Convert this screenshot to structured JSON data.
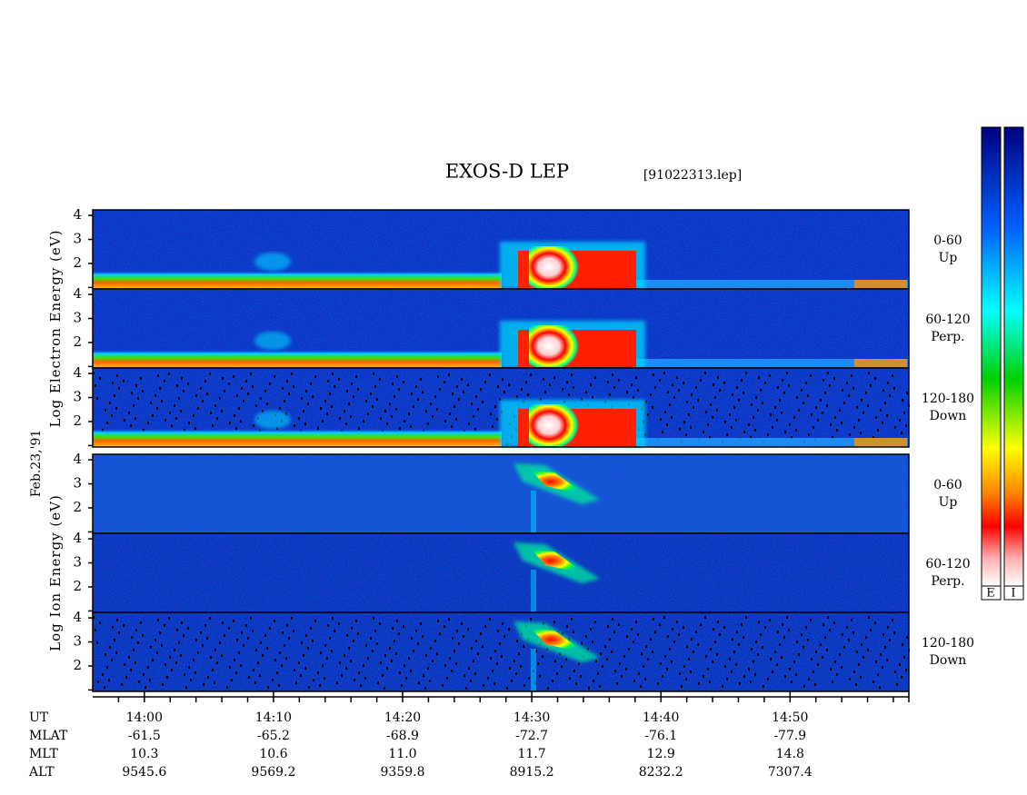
{
  "chart_data": {
    "type": "spectrogram",
    "title": "EXOS-D LEP",
    "subtitle": "[91022313.lep]",
    "date_label": "Feb.23,'91",
    "groups": [
      {
        "label": "Log Electron Energy (eV)",
        "panels": [
          [
            "0-60",
            "Up"
          ],
          [
            "60-120",
            "Perp."
          ],
          [
            "120-180",
            "Down"
          ]
        ]
      },
      {
        "label": "Log Ion Energy (eV)",
        "panels": [
          [
            "0-60",
            "Up"
          ],
          [
            "60-120",
            "Perp."
          ],
          [
            "120-180",
            "Down"
          ]
        ]
      }
    ],
    "ylim": [
      0.94,
      4.23
    ],
    "yticks": [
      {
        "value": 1,
        "label": ""
      },
      2,
      3,
      4
    ],
    "xlim": [
      836,
      899.2
    ],
    "xticks": [
      {
        "value": 840,
        "label": "14:00"
      },
      {
        "value": 850,
        "label": "14:10"
      },
      {
        "value": 860,
        "label": "14:20"
      },
      {
        "value": 870,
        "label": "14:30"
      },
      {
        "value": 880,
        "label": "14:40"
      },
      {
        "value": 890,
        "label": "14:50"
      }
    ],
    "xminorticks": [
      838,
      842,
      844,
      846,
      848,
      852,
      854,
      856,
      858,
      862,
      864,
      866,
      868,
      872,
      874,
      876,
      878,
      882,
      884,
      886,
      888,
      892,
      894,
      896,
      898
    ],
    "ephemeris": {
      "labels": [
        "UT",
        "MLAT",
        "MLT",
        "ALT"
      ],
      "rows": [
        [
          "-61.5",
          "-65.2",
          "-68.9",
          "-72.7",
          "-76.1",
          "-77.9"
        ],
        [
          "10.3",
          "10.6",
          "11.0",
          "11.7",
          "12.9",
          "14.8"
        ],
        [
          "9545.6",
          "9569.2",
          "9359.8",
          "8915.2",
          "8232.2",
          "7307.4"
        ]
      ]
    },
    "colorbar_labels": [
      "E",
      "I"
    ]
  }
}
